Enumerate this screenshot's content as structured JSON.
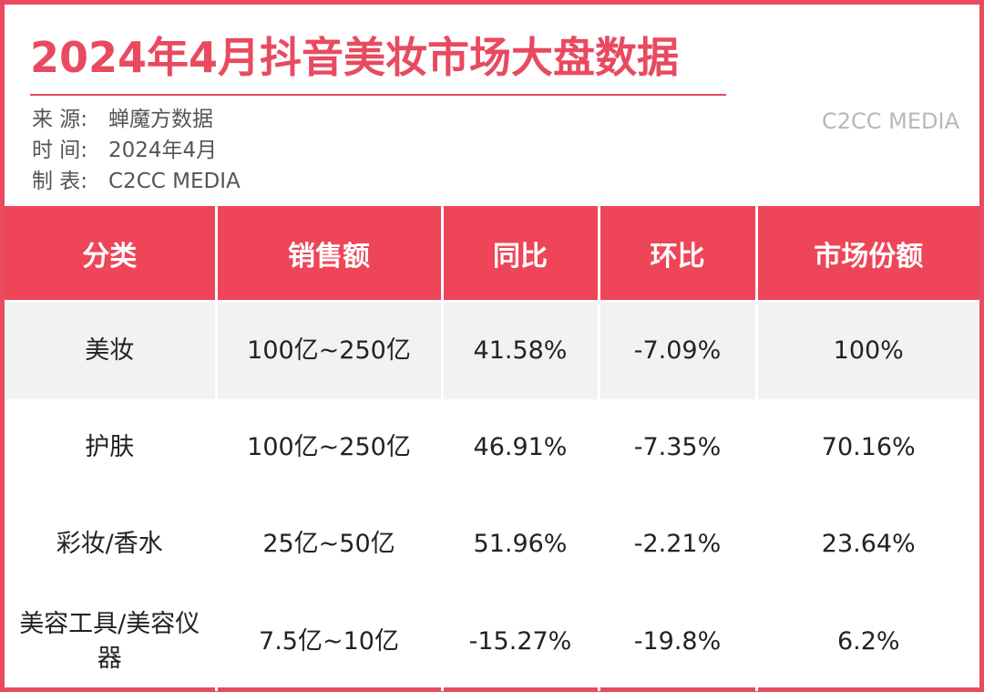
{
  "title": "2024年4月抖音美妆市场大盘数据",
  "watermark": "C2CC MEDIA",
  "meta": {
    "source_label": "来 源:",
    "source_value": "蝉魔方数据",
    "time_label": "时 间:",
    "time_value": "2024年4月",
    "maker_label": "制 表:",
    "maker_value": "C2CC  MEDIA"
  },
  "table": {
    "headers": [
      "分类",
      "销售额",
      "同比",
      "环比",
      "市场份额"
    ],
    "rows": [
      [
        "美妆",
        "100亿~250亿",
        "41.58%",
        "-7.09%",
        "100%"
      ],
      [
        "护肤",
        "100亿~250亿",
        "46.91%",
        "-7.35%",
        "70.16%"
      ],
      [
        "彩妆/香水",
        "25亿~50亿",
        "51.96%",
        "-2.21%",
        "23.64%"
      ],
      [
        "美容工具/美容仪器",
        "7.5亿~10亿",
        "-15.27%",
        "-19.8%",
        "6.2%"
      ]
    ]
  },
  "colors": {
    "accent": "#e84a5f",
    "header_bg": "#ee4558",
    "stripe_bg": "#f2f2f2",
    "watermark": "#b8b8b8"
  }
}
